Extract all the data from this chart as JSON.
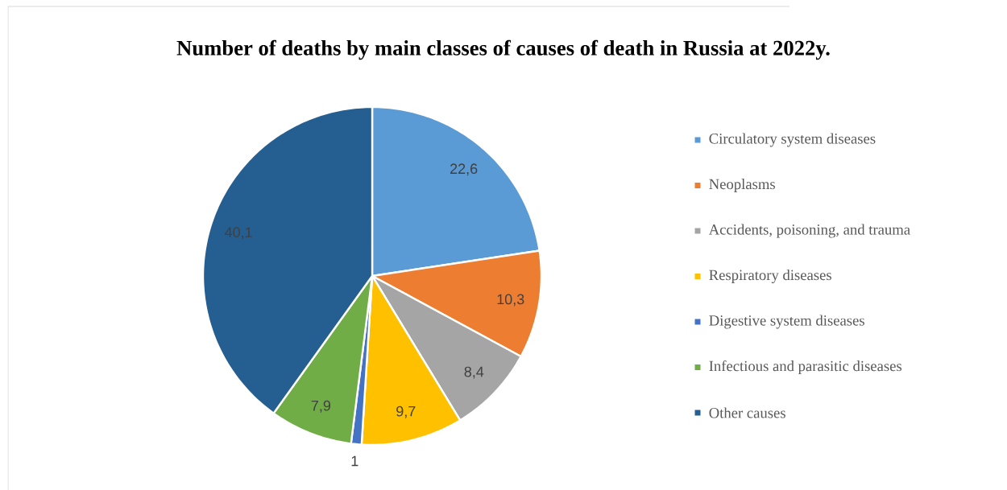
{
  "chart_data": {
    "type": "pie",
    "title": "Number of deaths by main classes of causes of death in Russia at 2022y.",
    "categories": [
      "Circulatory system diseases",
      "Neoplasms",
      "Accidents, poisoning, and trauma",
      "Respiratory diseases",
      "Digestive system diseases",
      "Infectious and parasitic diseases",
      "Other causes"
    ],
    "values": [
      22.6,
      10.3,
      8.4,
      9.7,
      1,
      7.9,
      40.1
    ],
    "value_labels": [
      "22,6",
      "10,3",
      "8,4",
      "9,7",
      "1",
      "7,9",
      "40,1"
    ],
    "colors": [
      "#5b9bd5",
      "#ed7d31",
      "#a5a5a5",
      "#ffc000",
      "#4472c4",
      "#70ad47",
      "#255e91"
    ],
    "legend": "right"
  }
}
